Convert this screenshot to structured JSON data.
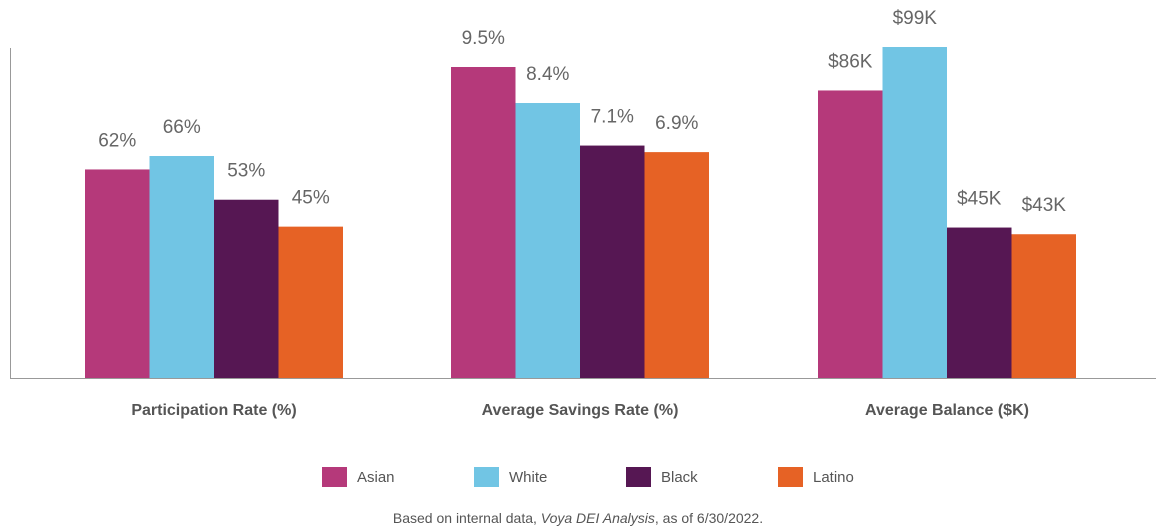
{
  "chart_data": {
    "type": "bar",
    "categories": [
      "Participation Rate (%)",
      "Average Savings Rate (%)",
      "Average Balance ($K)"
    ],
    "series": [
      {
        "name": "Asian",
        "color": "#b5397a",
        "values": [
          62,
          9.5,
          86
        ],
        "value_labels": [
          "62%",
          "9.5%",
          "$86K"
        ]
      },
      {
        "name": "White",
        "color": "#71c5e4",
        "values": [
          66,
          8.4,
          99
        ],
        "value_labels": [
          "66%",
          "8.4%",
          "$99K"
        ]
      },
      {
        "name": "Black",
        "color": "#561753",
        "values": [
          53,
          7.1,
          45
        ],
        "value_labels": [
          "53%",
          "7.1%",
          "$45K"
        ]
      },
      {
        "name": "Latino",
        "color": "#e66225",
        "values": [
          45,
          6.9,
          43
        ],
        "value_labels": [
          "45%",
          "6.9%",
          "$43K"
        ]
      }
    ],
    "footnote": [
      "Based on internal data, ",
      "Voya DEI Analysis",
      ", as of 6/30/2022."
    ]
  }
}
